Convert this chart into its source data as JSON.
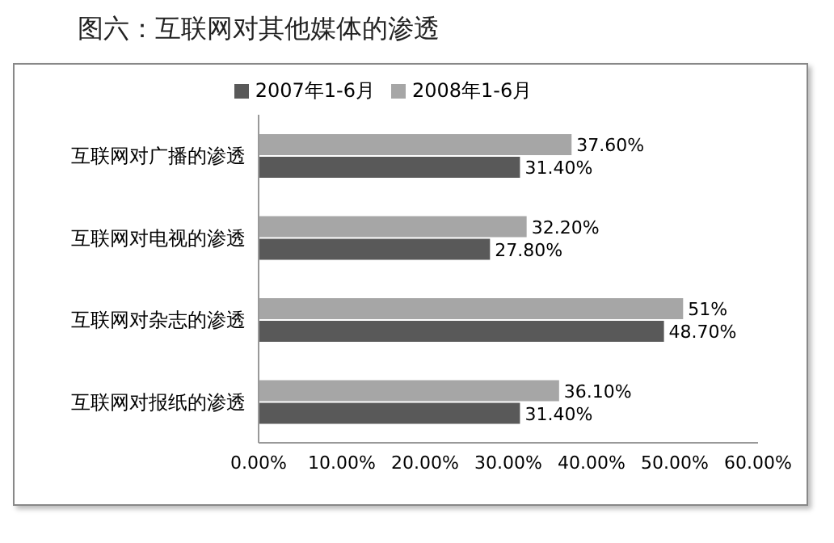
{
  "chart_data": {
    "type": "bar",
    "orientation": "horizontal",
    "title": "图六：互联网对其他媒体的渗透",
    "categories": [
      "互联网对广播的渗透",
      "互联网对电视的渗透",
      "互联网对杂志的渗透",
      "互联网对报纸的渗透"
    ],
    "series": [
      {
        "name": "2008年1-6月",
        "color": "#a6a6a6",
        "values": [
          37.6,
          32.2,
          51,
          36.1
        ],
        "value_labels": [
          "37.60%",
          "32.20%",
          "51%",
          "36.10%"
        ]
      },
      {
        "name": "2007年1-6月",
        "color": "#595959",
        "values": [
          31.4,
          27.8,
          48.7,
          31.4
        ],
        "value_labels": [
          "31.40%",
          "27.80%",
          "48.70%",
          "31.40%"
        ]
      }
    ],
    "xlim": [
      0,
      60
    ],
    "xticks": [
      {
        "value": 0,
        "label": "0.00%"
      },
      {
        "value": 10,
        "label": "10.00%"
      },
      {
        "value": 20,
        "label": "20.00%"
      },
      {
        "value": 30,
        "label": "30.00%"
      },
      {
        "value": 40,
        "label": "40.00%"
      },
      {
        "value": 50,
        "label": "50.00%"
      },
      {
        "value": 60,
        "label": "60.00%"
      }
    ],
    "grid": false,
    "legend": "top"
  }
}
